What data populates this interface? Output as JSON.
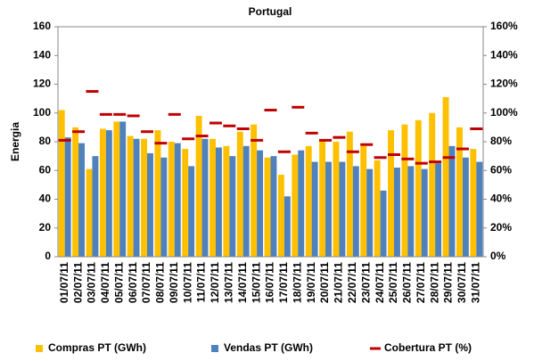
{
  "chart_data": {
    "type": "bar",
    "title": "Portugal",
    "ylabel": "Energia",
    "categories": [
      "01/07/11",
      "02/07/11",
      "03/07/11",
      "04/07/11",
      "05/07/11",
      "06/07/11",
      "07/07/11",
      "08/07/11",
      "09/07/11",
      "10/07/11",
      "11/07/11",
      "12/07/11",
      "13/07/11",
      "14/07/11",
      "15/07/11",
      "16/07/11",
      "17/07/11",
      "18/07/11",
      "19/07/11",
      "20/07/11",
      "21/07/11",
      "22/07/11",
      "23/07/11",
      "24/07/11",
      "25/07/11",
      "26/07/11",
      "27/07/11",
      "28/07/11",
      "29/07/11",
      "30/07/11",
      "31/07/11"
    ],
    "series": [
      {
        "name": "Compras PT (GWh)",
        "color": "#FFC000",
        "values": [
          102,
          90,
          61,
          89,
          94,
          84,
          82,
          88,
          80,
          75,
          98,
          82,
          77,
          87,
          92,
          69,
          57,
          71,
          77,
          81,
          80,
          87,
          77,
          67,
          88,
          92,
          95,
          100,
          111,
          90,
          75
        ]
      },
      {
        "name": "Vendas PT (GWh)",
        "color": "#4F81BD",
        "values": [
          83,
          79,
          70,
          88,
          94,
          82,
          72,
          69,
          79,
          63,
          82,
          76,
          70,
          77,
          74,
          70,
          42,
          74,
          66,
          66,
          66,
          63,
          61,
          46,
          62,
          63,
          61,
          65,
          77,
          69,
          66
        ]
      },
      {
        "name": "Cobertura PT (%)",
        "color": "#C00000",
        "axis": "y2",
        "values": [
          81,
          87,
          115,
          99,
          99,
          98,
          87,
          79,
          99,
          82,
          84,
          93,
          91,
          89,
          81,
          102,
          73,
          104,
          86,
          81,
          83,
          73,
          78,
          69,
          71,
          68,
          65,
          66,
          69,
          75,
          89
        ]
      }
    ],
    "ylim": [
      0,
      160
    ],
    "yticks": [
      0,
      20,
      40,
      60,
      80,
      100,
      120,
      140,
      160
    ],
    "y2lim": [
      0,
      160
    ],
    "y2ticks": [
      {
        "value": 0,
        "label": "0%"
      },
      {
        "value": 20,
        "label": "20%"
      },
      {
        "value": 40,
        "label": "40%"
      },
      {
        "value": 60,
        "label": "60%"
      },
      {
        "value": 80,
        "label": "80%"
      },
      {
        "value": 100,
        "label": "100%"
      },
      {
        "value": 120,
        "label": "120%"
      },
      {
        "value": 140,
        "label": "140%"
      },
      {
        "value": 160,
        "label": "160%"
      }
    ],
    "legend": "bottom"
  }
}
